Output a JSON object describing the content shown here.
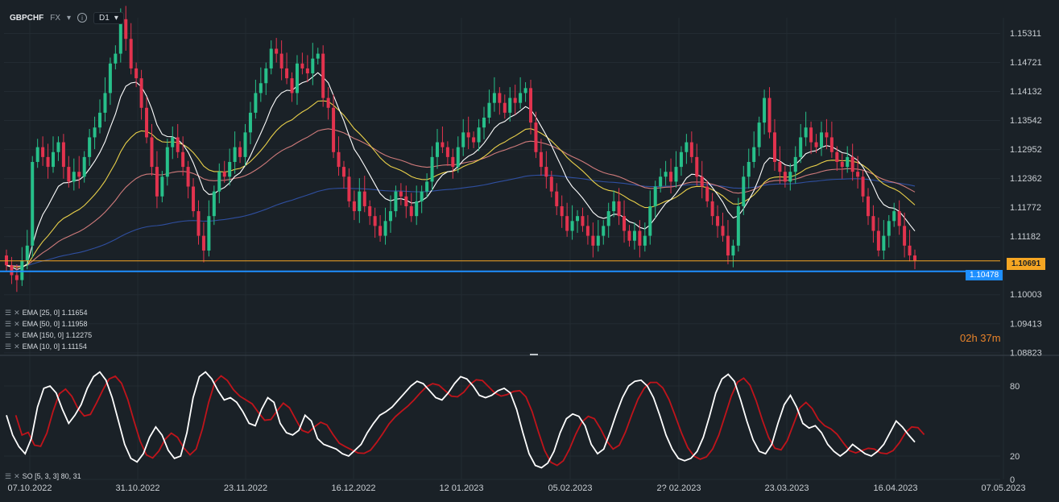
{
  "header": {
    "symbol": "GBPCHF",
    "market": "FX",
    "timeframe": "D1"
  },
  "indicators": [
    {
      "label": "EMA [25, 0] 1.11654",
      "color": "#f5d64a"
    },
    {
      "label": "EMA [50, 0] 1.11958",
      "color": "#e08a8a"
    },
    {
      "label": "EMA [150, 0] 1.12275",
      "color": "#2f4fa0"
    },
    {
      "label": "EMA [10, 0] 1.11154",
      "color": "#ffffff"
    }
  ],
  "oscillator_label": "SO [5, 3, 3] 80, 31",
  "timer": "02h 37m",
  "price_tags": {
    "orange": "1.10691",
    "blue": "1.10478"
  },
  "colors": {
    "background": "#1a2127",
    "bull": "#27c08a",
    "bear": "#e2334e",
    "orange_line": "#f5a623",
    "blue_line": "#1e8fff",
    "stoch_k": "#ffffff",
    "stoch_d": "#c0141b"
  },
  "chart_data": {
    "type": "candlestick",
    "title": "GBPCHF",
    "y_ticks": [
      1.15311,
      1.14721,
      1.14132,
      1.13542,
      1.12952,
      1.12362,
      1.11772,
      1.11182,
      1.10003,
      1.09413,
      1.08823
    ],
    "x_ticks": [
      "07.10.2022",
      "31.10.2022",
      "23.11.2022",
      "16.12.2022",
      "12 01.2023",
      "05.02.2023",
      "2? 02.2023",
      "23.03.2023",
      "16.04.2023",
      "07.05.2023"
    ],
    "ylim": [
      1.0882,
      1.1563
    ],
    "horizontal_lines": [
      {
        "value": 1.10691,
        "color": "orange"
      },
      {
        "value": 1.10478,
        "color": "blue"
      }
    ],
    "close_values": [
      1.106,
      1.104,
      1.103,
      1.107,
      1.11,
      1.127,
      1.13,
      1.128,
      1.126,
      1.129,
      1.131,
      1.126,
      1.123,
      1.125,
      1.124,
      1.128,
      1.132,
      1.134,
      1.137,
      1.141,
      1.147,
      1.149,
      1.156,
      1.152,
      1.146,
      1.144,
      1.138,
      1.132,
      1.126,
      1.12,
      1.124,
      1.13,
      1.132,
      1.129,
      1.126,
      1.122,
      1.117,
      1.112,
      1.109,
      1.116,
      1.121,
      1.125,
      1.124,
      1.127,
      1.13,
      1.128,
      1.133,
      1.137,
      1.141,
      1.143,
      1.146,
      1.15,
      1.149,
      1.146,
      1.144,
      1.141,
      1.147,
      1.146,
      1.145,
      1.148,
      1.149,
      1.14,
      1.138,
      1.129,
      1.126,
      1.124,
      1.119,
      1.117,
      1.121,
      1.118,
      1.116,
      1.114,
      1.112,
      1.115,
      1.117,
      1.121,
      1.12,
      1.118,
      1.116,
      1.119,
      1.121,
      1.123,
      1.128,
      1.131,
      1.13,
      1.128,
      1.126,
      1.13,
      1.133,
      1.132,
      1.131,
      1.134,
      1.136,
      1.139,
      1.141,
      1.139,
      1.137,
      1.14,
      1.139,
      1.141,
      1.142,
      1.135,
      1.129,
      1.126,
      1.124,
      1.121,
      1.118,
      1.116,
      1.113,
      1.115,
      1.116,
      1.114,
      1.112,
      1.11,
      1.112,
      1.114,
      1.117,
      1.119,
      1.116,
      1.113,
      1.111,
      1.113,
      1.11,
      1.112,
      1.118,
      1.122,
      1.124,
      1.125,
      1.123,
      1.126,
      1.129,
      1.131,
      1.128,
      1.124,
      1.122,
      1.119,
      1.116,
      1.114,
      1.112,
      1.108,
      1.11,
      1.118,
      1.124,
      1.127,
      1.13,
      1.135,
      1.14,
      1.133,
      1.127,
      1.125,
      1.123,
      1.125,
      1.128,
      1.132,
      1.134,
      1.131,
      1.13,
      1.133,
      1.132,
      1.129,
      1.127,
      1.126,
      1.128,
      1.125,
      1.124,
      1.12,
      1.116,
      1.113,
      1.109,
      1.112,
      1.115,
      1.117,
      1.114,
      1.11,
      1.108,
      1.107
    ],
    "stochastic": {
      "overbought": 80,
      "oversold": 20,
      "range": [
        0,
        100
      ],
      "k": [
        55,
        38,
        28,
        22,
        35,
        62,
        78,
        80,
        74,
        60,
        48,
        55,
        64,
        78,
        88,
        92,
        85,
        70,
        50,
        30,
        18,
        15,
        22,
        36,
        45,
        38,
        25,
        18,
        20,
        40,
        70,
        88,
        92,
        86,
        76,
        68,
        70,
        66,
        58,
        48,
        46,
        60,
        70,
        66,
        48,
        40,
        38,
        42,
        55,
        50,
        35,
        30,
        28,
        26,
        22,
        20,
        25,
        30,
        40,
        48,
        55,
        58,
        62,
        68,
        74,
        80,
        84,
        82,
        76,
        70,
        68,
        74,
        82,
        88,
        86,
        80,
        72,
        70,
        72,
        76,
        78,
        74,
        60,
        40,
        22,
        12,
        10,
        14,
        24,
        40,
        52,
        56,
        54,
        46,
        30,
        22,
        26,
        40,
        56,
        70,
        80,
        84,
        85,
        80,
        70,
        55,
        38,
        26,
        18,
        16,
        18,
        24,
        36,
        54,
        74,
        86,
        90,
        84,
        68,
        50,
        34,
        24,
        22,
        30,
        48,
        64,
        72,
        62,
        48,
        44,
        46,
        40,
        30,
        24,
        20,
        24,
        30,
        26,
        22,
        20,
        24,
        30,
        40,
        50,
        45,
        38,
        32
      ]
    }
  }
}
